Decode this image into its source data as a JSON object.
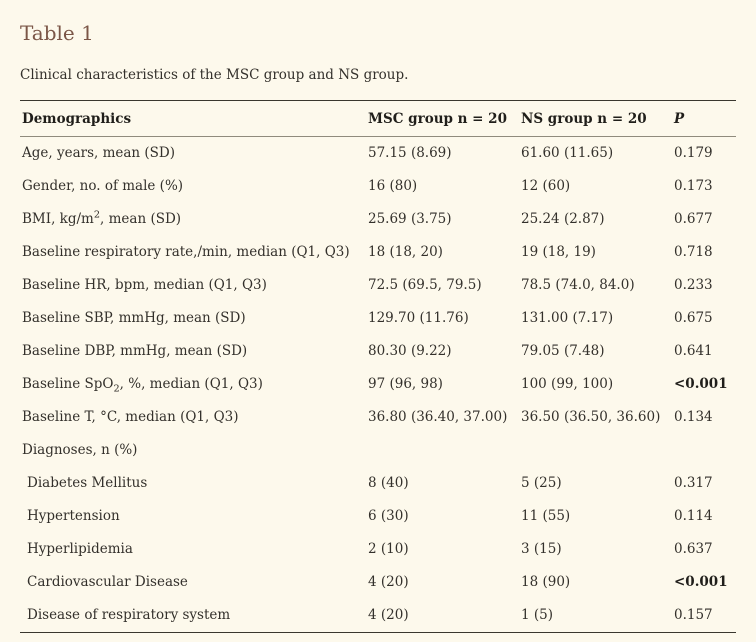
{
  "table": {
    "title": "Table 1",
    "caption": "Clinical characteristics of the MSC group and NS group.",
    "columns": [
      "Demographics",
      "MSC group n = 20",
      "NS group n = 20",
      "P"
    ],
    "rows": [
      {
        "label": "Age, years, mean (SD)",
        "msc": "57.15 (8.69)",
        "ns": "61.60 (11.65)",
        "p": "0.179",
        "p_bold": false,
        "indent": false,
        "section": false
      },
      {
        "label": "Gender, no. of male (%)",
        "msc": "16 (80)",
        "ns": "12 (60)",
        "p": "0.173",
        "p_bold": false,
        "indent": false,
        "section": false
      },
      {
        "label": "BMI, kg/m^{2}, mean (SD)",
        "msc": "25.69 (3.75)",
        "ns": "25.24 (2.87)",
        "p": "0.677",
        "p_bold": false,
        "indent": false,
        "section": false
      },
      {
        "label": "Baseline respiratory rate,/min, median (Q1, Q3)",
        "msc": "18 (18, 20)",
        "ns": "19 (18, 19)",
        "p": "0.718",
        "p_bold": false,
        "indent": false,
        "section": false
      },
      {
        "label": "Baseline HR, bpm, median (Q1, Q3)",
        "msc": "72.5 (69.5, 79.5)",
        "ns": "78.5 (74.0, 84.0)",
        "p": "0.233",
        "p_bold": false,
        "indent": false,
        "section": false
      },
      {
        "label": "Baseline SBP, mmHg, mean (SD)",
        "msc": "129.70 (11.76)",
        "ns": "131.00 (7.17)",
        "p": "0.675",
        "p_bold": false,
        "indent": false,
        "section": false
      },
      {
        "label": "Baseline DBP, mmHg, mean (SD)",
        "msc": "80.30 (9.22)",
        "ns": "79.05 (7.48)",
        "p": "0.641",
        "p_bold": false,
        "indent": false,
        "section": false
      },
      {
        "label": "Baseline SpO_{2}, %, median (Q1, Q3)",
        "msc": "97 (96, 98)",
        "ns": "100 (99, 100)",
        "p": "<0.001",
        "p_bold": true,
        "indent": false,
        "section": false
      },
      {
        "label": "Baseline T, °C, median (Q1, Q3)",
        "msc": "36.80 (36.40, 37.00)",
        "ns": "36.50 (36.50, 36.60)",
        "p": "0.134",
        "p_bold": false,
        "indent": false,
        "section": false
      },
      {
        "label": "Diagnoses, n (%)",
        "msc": "",
        "ns": "",
        "p": "",
        "p_bold": false,
        "indent": false,
        "section": true
      },
      {
        "label": "Diabetes Mellitus",
        "msc": "8 (40)",
        "ns": "5 (25)",
        "p": "0.317",
        "p_bold": false,
        "indent": true,
        "section": false
      },
      {
        "label": "Hypertension",
        "msc": "6 (30)",
        "ns": "11 (55)",
        "p": "0.114",
        "p_bold": false,
        "indent": true,
        "section": false
      },
      {
        "label": "Hyperlipidemia",
        "msc": "2 (10)",
        "ns": "3 (15)",
        "p": "0.637",
        "p_bold": false,
        "indent": true,
        "section": false
      },
      {
        "label": "Cardiovascular Disease",
        "msc": "4 (20)",
        "ns": "18 (90)",
        "p": "<0.001",
        "p_bold": true,
        "indent": true,
        "section": false
      },
      {
        "label": "Disease of respiratory system",
        "msc": "4 (20)",
        "ns": "1 (5)",
        "p": "0.157",
        "p_bold": false,
        "indent": true,
        "section": false
      }
    ],
    "colors": {
      "background": "#fdf9ec",
      "title": "#7b5647",
      "text": "#33302b",
      "rule_dark": "#3a372e",
      "rule_light": "#908b7d"
    }
  }
}
